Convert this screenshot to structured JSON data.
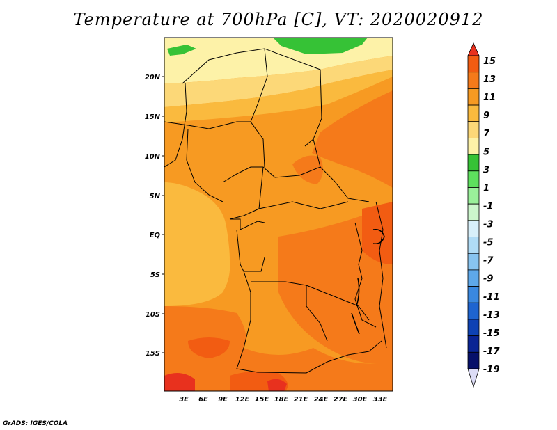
{
  "title": "Temperature at 700hPa [C], VT: 2020020912",
  "credit": "GrADS: IGES/COLA",
  "lat_ticks": [
    "20N",
    "15N",
    "10N",
    "5N",
    "EQ",
    "5S",
    "10S",
    "15S"
  ],
  "lon_ticks": [
    "3E",
    "6E",
    "9E",
    "12E",
    "15E",
    "18E",
    "21E",
    "24E",
    "27E",
    "30E",
    "33E"
  ],
  "colorbar": {
    "labels": [
      "15",
      "13",
      "11",
      "9",
      "7",
      "5",
      "3",
      "1",
      "-1",
      "-3",
      "-5",
      "-7",
      "-9",
      "-11",
      "-13",
      "-15",
      "-17",
      "-19"
    ],
    "colors": [
      "#e8311e",
      "#f25c12",
      "#f57a1a",
      "#f79a22",
      "#faba3e",
      "#fcd878",
      "#fdf2a8",
      "#36c236",
      "#5ee05e",
      "#9af09a",
      "#cdf7cd",
      "#d8f0fa",
      "#b0dcf6",
      "#88c4f0",
      "#5ea8ea",
      "#3a88e0",
      "#1e64d0",
      "#0e42b4",
      "#0a2494",
      "#06106a",
      "#dcdcf6"
    ]
  },
  "icons": {
    "arrow_top": "triangle-up-icon",
    "arrow_bottom": "triangle-down-icon"
  }
}
